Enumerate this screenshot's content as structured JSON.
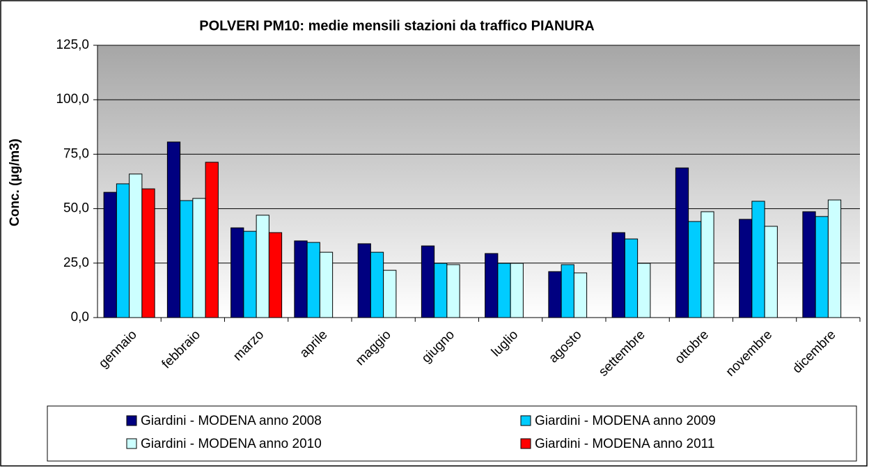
{
  "chart_data": {
    "type": "bar",
    "title": "POLVERI PM10: medie mensili  stazioni da traffico PIANURA",
    "y_label": "Conc. (µg/m3)",
    "categories": [
      "gennaio",
      "febbraio",
      "marzo",
      "aprile",
      "maggio",
      "giugno",
      "luglio",
      "agosto",
      "settembre",
      "ottobre",
      "novembre",
      "dicembre"
    ],
    "series": [
      {
        "name": "Giardini  - MODENA anno 2008",
        "color": "#000080",
        "values": [
          57.5,
          80.6,
          41.2,
          35.2,
          33.9,
          32.9,
          29.4,
          21.1,
          39.0,
          68.7,
          45.1,
          48.6
        ]
      },
      {
        "name": "Giardini  - MODENA anno 2009",
        "color": "#00ccff",
        "values": [
          61.4,
          53.7,
          39.6,
          34.5,
          30.0,
          24.9,
          24.9,
          24.3,
          36.1,
          44.1,
          53.4,
          46.4
        ]
      },
      {
        "name": "Giardini  - MODENA anno 2010",
        "color": "#ccffff",
        "values": [
          65.9,
          54.7,
          47.0,
          30.0,
          21.7,
          24.3,
          24.9,
          20.5,
          24.9,
          48.6,
          41.9,
          54.0
        ]
      },
      {
        "name": "Giardini  - MODENA anno 2011",
        "color": "#ff0000",
        "values": [
          59.1,
          71.3,
          39.0,
          null,
          null,
          null,
          null,
          null,
          null,
          null,
          null,
          null
        ]
      }
    ],
    "ylim": [
      0,
      125
    ],
    "yticks": [
      {
        "value": 0,
        "label": "0,0"
      },
      {
        "value": 25,
        "label": "25,0"
      },
      {
        "value": 50,
        "label": "50,0"
      },
      {
        "value": 75,
        "label": "75,0"
      },
      {
        "value": 100,
        "label": "100,0"
      },
      {
        "value": 125,
        "label": "125,0"
      }
    ],
    "grid": true
  }
}
